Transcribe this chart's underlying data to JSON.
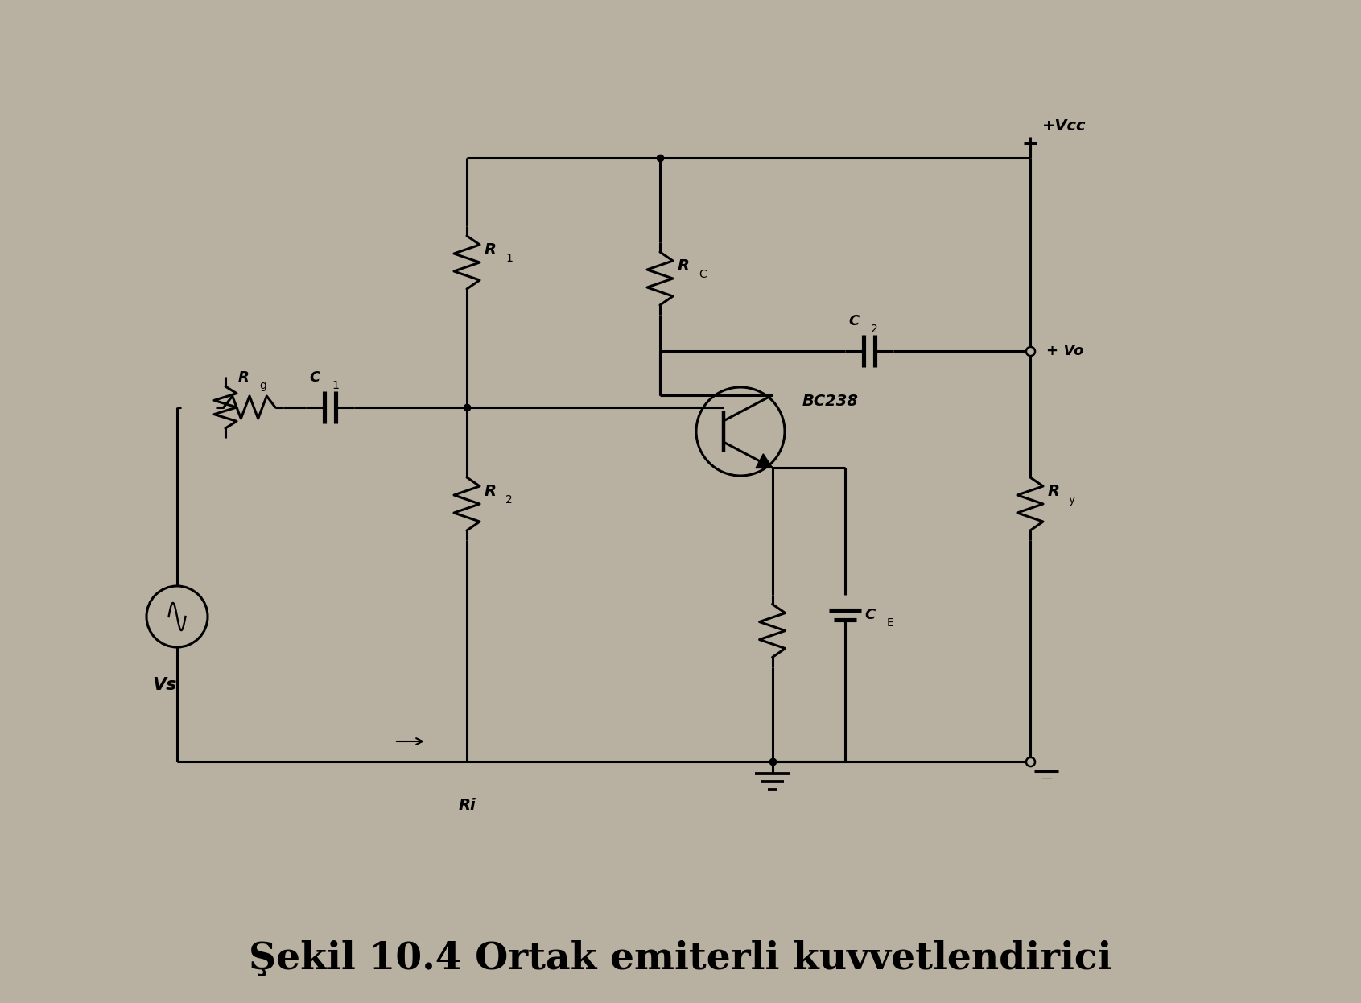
{
  "bg_color": "#b8b0a0",
  "line_color": "#000000",
  "title": "Şekil 10.4 Ortak emiterli kuvvetlendirici",
  "title_fontsize": 34,
  "labels": {
    "Vcc": "+Vcc",
    "R1": "R",
    "R1_sub": "1",
    "R2": "R",
    "R2_sub": "2",
    "Rg": "R",
    "Rg_sub": "g",
    "Rc": "R",
    "Rc_sub": "C",
    "Ry": "R",
    "Ry_sub": "y",
    "C1": "C",
    "C1_sub": "1",
    "C2": "C",
    "C2_sub": "2",
    "CE": "C",
    "CE_sub": "E",
    "Vs": "Vs",
    "Ri": "Ri",
    "Vo": "+ Vo",
    "BC238": "BC238"
  }
}
